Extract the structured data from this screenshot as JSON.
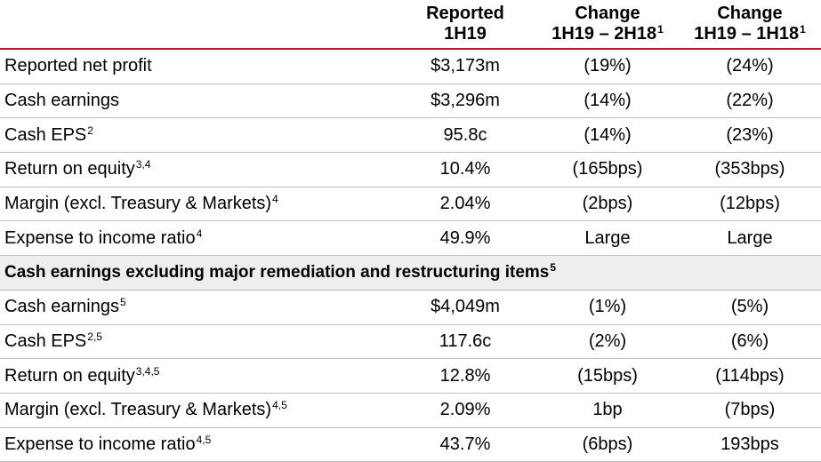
{
  "header": {
    "col1_line1": "Reported",
    "col1_line2": "1H19",
    "col2_line1": "Change",
    "col2_line2": "1H19 – 2H18",
    "col2_sup": "1",
    "col3_line1": "Change",
    "col3_line2": "1H19 – 1H18",
    "col3_sup": "1"
  },
  "rows_top": [
    {
      "label": "Reported net profit",
      "sup": "",
      "reported": "$3,173m",
      "chg_2h18": "(19%)",
      "chg_1h18": "(24%)"
    },
    {
      "label": "Cash earnings",
      "sup": "",
      "reported": "$3,296m",
      "chg_2h18": "(14%)",
      "chg_1h18": "(22%)"
    },
    {
      "label": "Cash EPS",
      "sup": "2",
      "reported": "95.8c",
      "chg_2h18": "(14%)",
      "chg_1h18": "(23%)"
    },
    {
      "label": "Return on equity",
      "sup": "3,4",
      "reported": "10.4%",
      "chg_2h18": "(165bps)",
      "chg_1h18": "(353bps)"
    },
    {
      "label": "Margin (excl. Treasury & Markets)",
      "sup": "4",
      "reported": "2.04%",
      "chg_2h18": "(2bps)",
      "chg_1h18": "(12bps)"
    },
    {
      "label": "Expense to income ratio",
      "sup": "4",
      "reported": "49.9%",
      "chg_2h18": "Large",
      "chg_1h18": "Large"
    }
  ],
  "section": {
    "label": "Cash earnings excluding major remediation and restructuring items",
    "sup": "5"
  },
  "rows_bottom": [
    {
      "label": "Cash earnings",
      "sup": "5",
      "reported": "$4,049m",
      "chg_2h18": "(1%)",
      "chg_1h18": "(5%)"
    },
    {
      "label": "Cash EPS",
      "sup": "2,5",
      "reported": "117.6c",
      "chg_2h18": "(2%)",
      "chg_1h18": "(6%)"
    },
    {
      "label": "Return on equity",
      "sup": "3,4,5",
      "reported": "12.8%",
      "chg_2h18": "(15bps)",
      "chg_1h18": "(114bps)"
    },
    {
      "label": "Margin (excl. Treasury & Markets)",
      "sup": "4,5",
      "reported": "2.09%",
      "chg_2h18": "1bp",
      "chg_1h18": "(7bps)"
    },
    {
      "label": "Expense to income ratio",
      "sup": "4,5",
      "reported": "43.7%",
      "chg_2h18": "(6bps)",
      "chg_1h18": "193bps"
    }
  ]
}
